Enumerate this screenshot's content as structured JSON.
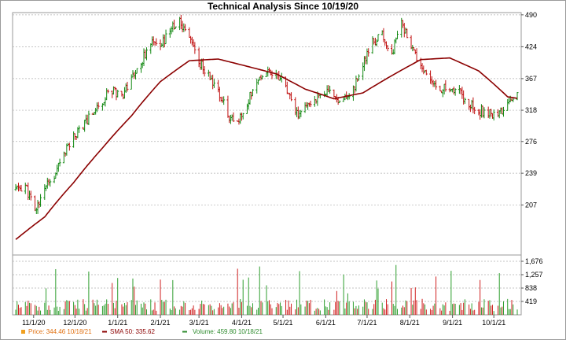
{
  "chart_data": {
    "type": "line",
    "title": "Technical Analysis Since 10/19/20",
    "price_axis": {
      "ticks": [
        207,
        239,
        276,
        318,
        367,
        424,
        490
      ],
      "range": [
        165,
        495
      ],
      "scale": "log"
    },
    "volume_axis": {
      "ticks": [
        "419",
        "838",
        "1,257",
        "1,676"
      ],
      "values": [
        419,
        838,
        1257,
        1676
      ],
      "range": [
        0,
        1676
      ]
    },
    "x_axis": {
      "start": "10/19/20",
      "end": "10/18/21",
      "ticks": [
        {
          "label": "11/1/20",
          "date": "2020-11-01"
        },
        {
          "label": "12/1/20",
          "date": "2020-12-01"
        },
        {
          "label": "1/1/21",
          "date": "2021-01-01"
        },
        {
          "label": "2/1/21",
          "date": "2021-02-01"
        },
        {
          "label": "3/1/21",
          "date": "2021-03-01"
        },
        {
          "label": "4/1/21",
          "date": "2021-04-01"
        },
        {
          "label": "5/1/21",
          "date": "2021-05-01"
        },
        {
          "label": "6/1/21",
          "date": "2021-06-01"
        },
        {
          "label": "7/1/21",
          "date": "2021-07-01"
        },
        {
          "label": "8/1/21",
          "date": "2021-08-01"
        },
        {
          "label": "9/1/21",
          "date": "2021-09-01"
        },
        {
          "label": "10/1/21",
          "date": "2021-10-01"
        }
      ]
    },
    "grid": true,
    "price_anchors": [
      [
        "2020-10-19",
        222
      ],
      [
        "2020-10-26",
        226
      ],
      [
        "2020-11-02",
        200
      ],
      [
        "2020-11-09",
        225
      ],
      [
        "2020-11-16",
        232
      ],
      [
        "2020-11-23",
        262
      ],
      [
        "2020-11-30",
        282
      ],
      [
        "2020-12-07",
        298
      ],
      [
        "2020-12-14",
        315
      ],
      [
        "2020-12-21",
        333
      ],
      [
        "2020-12-28",
        350
      ],
      [
        "2021-01-04",
        340
      ],
      [
        "2021-01-11",
        368
      ],
      [
        "2021-01-18",
        395
      ],
      [
        "2021-01-25",
        432
      ],
      [
        "2021-02-01",
        420
      ],
      [
        "2021-02-08",
        462
      ],
      [
        "2021-02-15",
        472
      ],
      [
        "2021-02-22",
        448
      ],
      [
        "2021-03-01",
        396
      ],
      [
        "2021-03-08",
        372
      ],
      [
        "2021-03-15",
        345
      ],
      [
        "2021-03-22",
        312
      ],
      [
        "2021-03-29",
        298
      ],
      [
        "2021-04-05",
        330
      ],
      [
        "2021-04-12",
        365
      ],
      [
        "2021-04-19",
        380
      ],
      [
        "2021-04-26",
        378
      ],
      [
        "2021-05-03",
        352
      ],
      [
        "2021-05-10",
        310
      ],
      [
        "2021-05-17",
        320
      ],
      [
        "2021-05-24",
        336
      ],
      [
        "2021-05-31",
        345
      ],
      [
        "2021-06-07",
        340
      ],
      [
        "2021-06-14",
        332
      ],
      [
        "2021-06-21",
        350
      ],
      [
        "2021-06-28",
        390
      ],
      [
        "2021-07-05",
        432
      ],
      [
        "2021-07-12",
        445
      ],
      [
        "2021-07-19",
        410
      ],
      [
        "2021-07-26",
        472
      ],
      [
        "2021-08-02",
        420
      ],
      [
        "2021-08-09",
        388
      ],
      [
        "2021-08-16",
        360
      ],
      [
        "2021-08-23",
        350
      ],
      [
        "2021-08-30",
        352
      ],
      [
        "2021-09-06",
        345
      ],
      [
        "2021-09-13",
        330
      ],
      [
        "2021-09-20",
        318
      ],
      [
        "2021-09-27",
        315
      ],
      [
        "2021-10-04",
        312
      ],
      [
        "2021-10-11",
        326
      ],
      [
        "2021-10-18",
        344.46
      ]
    ],
    "sma50_anchors": [
      [
        "2020-10-19",
        177
      ],
      [
        "2020-11-09",
        196
      ],
      [
        "2020-11-30",
        229
      ],
      [
        "2020-12-21",
        268
      ],
      [
        "2021-01-11",
        310
      ],
      [
        "2021-02-01",
        362
      ],
      [
        "2021-02-22",
        398
      ],
      [
        "2021-03-15",
        401
      ],
      [
        "2021-04-05",
        388
      ],
      [
        "2021-04-26",
        375
      ],
      [
        "2021-05-17",
        350
      ],
      [
        "2021-06-07",
        335
      ],
      [
        "2021-06-28",
        344
      ],
      [
        "2021-07-19",
        372
      ],
      [
        "2021-08-09",
        400
      ],
      [
        "2021-08-30",
        403
      ],
      [
        "2021-09-20",
        380
      ],
      [
        "2021-10-11",
        338
      ],
      [
        "2021-10-18",
        335.62
      ]
    ],
    "series": [
      {
        "name": "Price",
        "legend_value": "344.46",
        "legend_date": "10/18/21",
        "color": "#f0a020"
      },
      {
        "name": "SMA 50",
        "legend_value": "335.62",
        "legend_date": "",
        "color": "#8b0000"
      },
      {
        "name": "Volume",
        "legend_value": "459.80",
        "legend_date": "10/18/21",
        "color": "#2e8b2e"
      }
    ]
  }
}
